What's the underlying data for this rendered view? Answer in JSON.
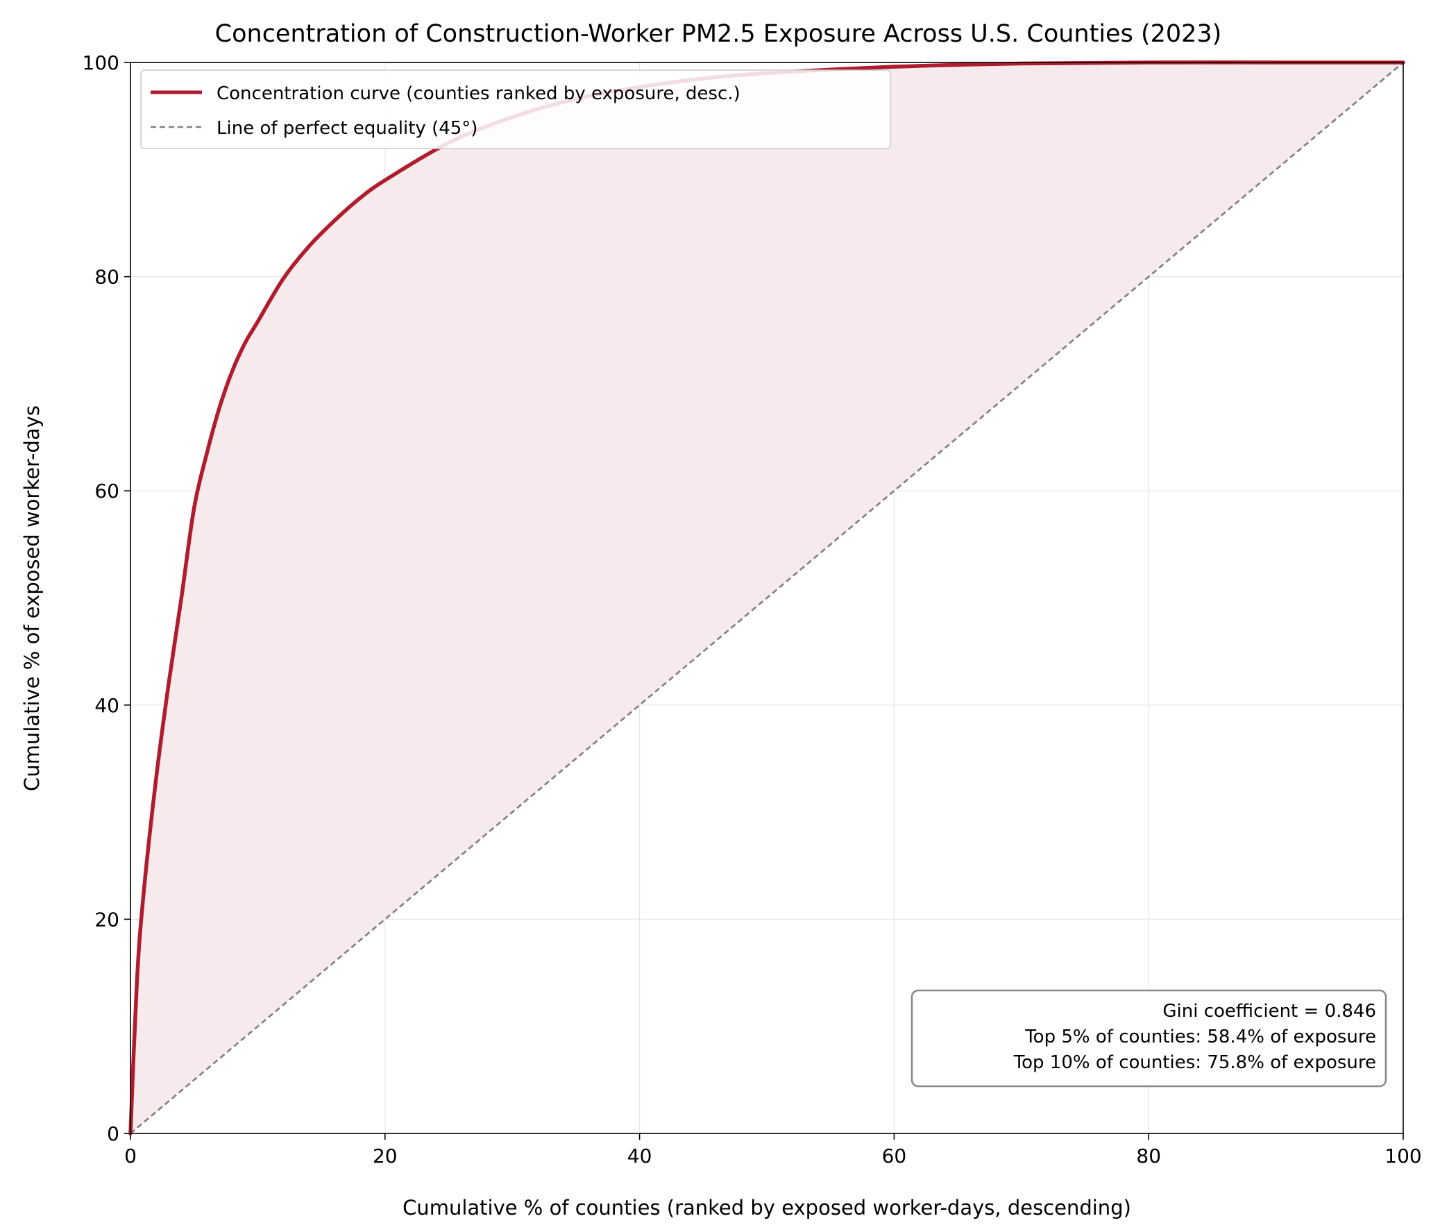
{
  "chart_data": {
    "type": "line",
    "title": "Concentration of Construction-Worker PM2.5 Exposure Across U.S. Counties (2023)",
    "xlabel": "Cumulative % of counties (ranked by exposed worker-days, descending)",
    "ylabel": "Cumulative % of exposed worker-days",
    "xlim": [
      0,
      100
    ],
    "ylim": [
      0,
      100
    ],
    "xticks": [
      0,
      20,
      40,
      60,
      80,
      100
    ],
    "yticks": [
      0,
      20,
      40,
      60,
      80,
      100
    ],
    "grid": true,
    "legend_position": "top-left",
    "series": [
      {
        "name": "Concentration curve (counties ranked by exposure, desc.)",
        "color": "#b01c2e",
        "style": "solid",
        "fill_to_equality": true,
        "fill_color": "#f7eaec",
        "x": [
          0,
          0.5,
          1,
          2,
          3,
          4,
          5,
          6,
          7,
          8,
          9,
          10,
          12,
          14,
          16,
          18,
          20,
          25,
          30,
          35,
          40,
          45,
          50,
          60,
          70,
          80,
          90,
          100
        ],
        "y": [
          0,
          14,
          22,
          33,
          42,
          50,
          58.4,
          63.5,
          67.8,
          71.2,
          73.8,
          75.8,
          79.8,
          82.8,
          85.2,
          87.3,
          89.0,
          92.5,
          94.9,
          96.6,
          97.7,
          98.5,
          99.0,
          99.6,
          99.9,
          100,
          100,
          100
        ]
      },
      {
        "name": "Line of perfect equality (45°)",
        "color": "#7f7f7f",
        "style": "dashed",
        "x": [
          0,
          100
        ],
        "y": [
          0,
          100
        ]
      }
    ],
    "annotations": [
      "Gini coefficient = 0.846",
      "Top 5% of counties: 58.4% of exposure",
      "Top 10% of counties: 75.8% of exposure"
    ]
  }
}
